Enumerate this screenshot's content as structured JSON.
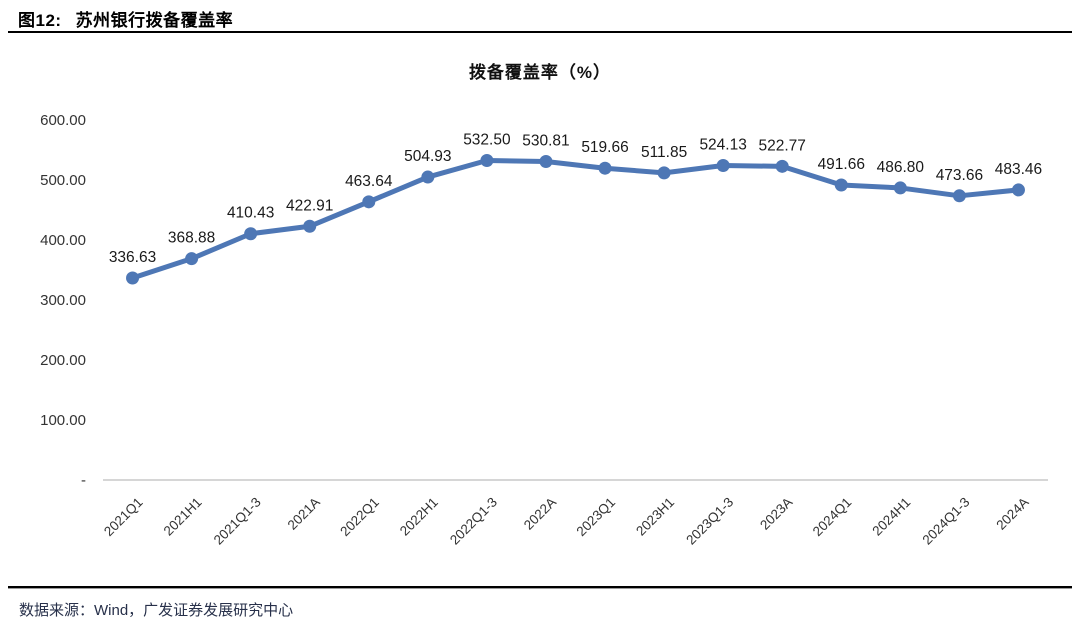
{
  "page": {
    "caption_no": "图12:",
    "caption_title": "苏州银行拨备覆盖率",
    "source_text": "数据来源：Wind，广发证券发展研究中心"
  },
  "chart_data": {
    "type": "line",
    "title": "拨备覆盖率（%）",
    "categories": [
      "2021Q1",
      "2021H1",
      "2021Q1-3",
      "2021A",
      "2022Q1",
      "2022H1",
      "2022Q1-3",
      "2022A",
      "2023Q1",
      "2023H1",
      "2023Q1-3",
      "2023A",
      "2024Q1",
      "2024H1",
      "2024Q1-3",
      "2024A"
    ],
    "series": [
      {
        "name": "拨备覆盖率",
        "values": [
          336.63,
          368.88,
          410.43,
          422.91,
          463.64,
          504.93,
          532.5,
          530.81,
          519.66,
          511.85,
          524.13,
          522.77,
          491.66,
          486.8,
          473.66,
          483.46
        ]
      }
    ],
    "ylim": [
      0,
      600
    ],
    "y_tick_step": 100,
    "y_tick_labels": [
      "600.00",
      "500.00",
      "400.00",
      "300.00",
      "200.00",
      "100.00",
      "-"
    ],
    "grid": false,
    "legend_position": "none",
    "data_labels": true,
    "line_color": "#4E77B5",
    "marker_color": "#4E77B5",
    "axis_line_color": "#c9c9c9",
    "label_color": "#1a1a1a",
    "tick_color": "#333333"
  }
}
